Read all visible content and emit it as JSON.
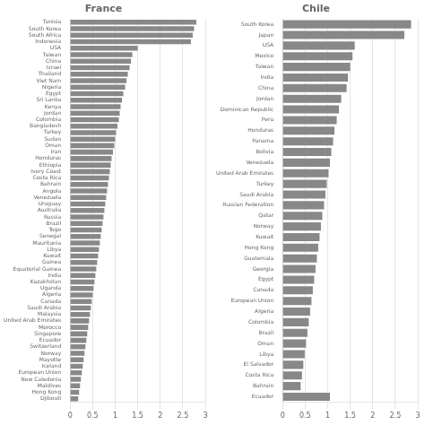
{
  "chart_data": [
    {
      "type": "bar",
      "orientation": "horizontal",
      "title": "France",
      "categories": [
        "Tunisia",
        "South Korea",
        "South Africa",
        "Indonesia",
        "USA",
        "Taiwan",
        "China",
        "Israel",
        "Thailand",
        "Viet Nam",
        "Nigeria",
        "Egypt",
        "Sri Lanka",
        "Kenya",
        "Jordan",
        "Colombia",
        "Bangladesh",
        "Turkey",
        "Sudan",
        "Oman",
        "Iran",
        "Honduras",
        "Ethiopia",
        "Ivory Coast",
        "Costa Rica",
        "Bahrain",
        "Angola",
        "Venezuela",
        "Uruguay",
        "Australia",
        "Russia",
        "Brazil",
        "Togo",
        "Senegal",
        "Mauritania",
        "Libya",
        "Kuwait",
        "Guinea",
        "Equatorial Guinea",
        "India",
        "Kazakhstan",
        "Uganda",
        "Algeria",
        "Canada",
        "Saudi Arabia",
        "Malaysia",
        "United Arab Emirates",
        "Morocco",
        "Singapore",
        "Ecuador",
        "Switzerland",
        "Norway",
        "Mayotte",
        "Iceland",
        "European Union",
        "New Caledonia",
        "Maldives",
        "Hong Kong",
        "Djibouti"
      ],
      "values": [
        2.8,
        2.75,
        2.72,
        2.68,
        1.5,
        1.38,
        1.35,
        1.32,
        1.28,
        1.25,
        1.22,
        1.18,
        1.15,
        1.12,
        1.1,
        1.08,
        1.05,
        1.02,
        1.0,
        0.98,
        0.95,
        0.92,
        0.9,
        0.88,
        0.86,
        0.84,
        0.82,
        0.8,
        0.78,
        0.76,
        0.74,
        0.72,
        0.7,
        0.68,
        0.66,
        0.64,
        0.62,
        0.6,
        0.58,
        0.56,
        0.54,
        0.52,
        0.5,
        0.48,
        0.46,
        0.44,
        0.42,
        0.4,
        0.38,
        0.36,
        0.34,
        0.32,
        0.3,
        0.28,
        0.26,
        0.24,
        0.22,
        0.2,
        0.18
      ],
      "color": "#888888",
      "xlim": [
        0,
        3
      ],
      "xticks": [
        0,
        0.5,
        1,
        1.5,
        2,
        2.5,
        3
      ],
      "grid": true
    },
    {
      "type": "bar",
      "orientation": "horizontal",
      "title": "Chile",
      "categories": [
        "South Korea",
        "Japan",
        "USA",
        "Mexico",
        "Taiwan",
        "India",
        "China",
        "Jordan",
        "Dominican Republic",
        "Peru",
        "Honduras",
        "Panama",
        "Bolivia",
        "Venezuela",
        "United Arab Emirates",
        "Turkey",
        "Saudi Arabia",
        "Russian Federation",
        "Qatar",
        "Norway",
        "Kuwait",
        "Hong Kong",
        "Guatemala",
        "Georgia",
        "Egypt",
        "Canada",
        "European Union",
        "Algeria",
        "Colombia",
        "Brazil",
        "Oman",
        "Libya",
        "El Salvador",
        "Costa Rica",
        "Bahrain",
        "Ecuador"
      ],
      "values": [
        2.85,
        2.7,
        1.6,
        1.55,
        1.5,
        1.45,
        1.42,
        1.3,
        1.25,
        1.2,
        1.15,
        1.12,
        1.08,
        1.05,
        1.02,
        0.98,
        0.95,
        0.92,
        0.88,
        0.85,
        0.82,
        0.79,
        0.76,
        0.73,
        0.7,
        0.67,
        0.64,
        0.61,
        0.58,
        0.55,
        0.52,
        0.49,
        0.46,
        0.43,
        0.4,
        1.05
      ],
      "color": "#888888",
      "xlim": [
        0,
        3
      ],
      "xticks": [
        0,
        0.5,
        1,
        1.5,
        2,
        2.5,
        3
      ],
      "grid": true
    }
  ]
}
